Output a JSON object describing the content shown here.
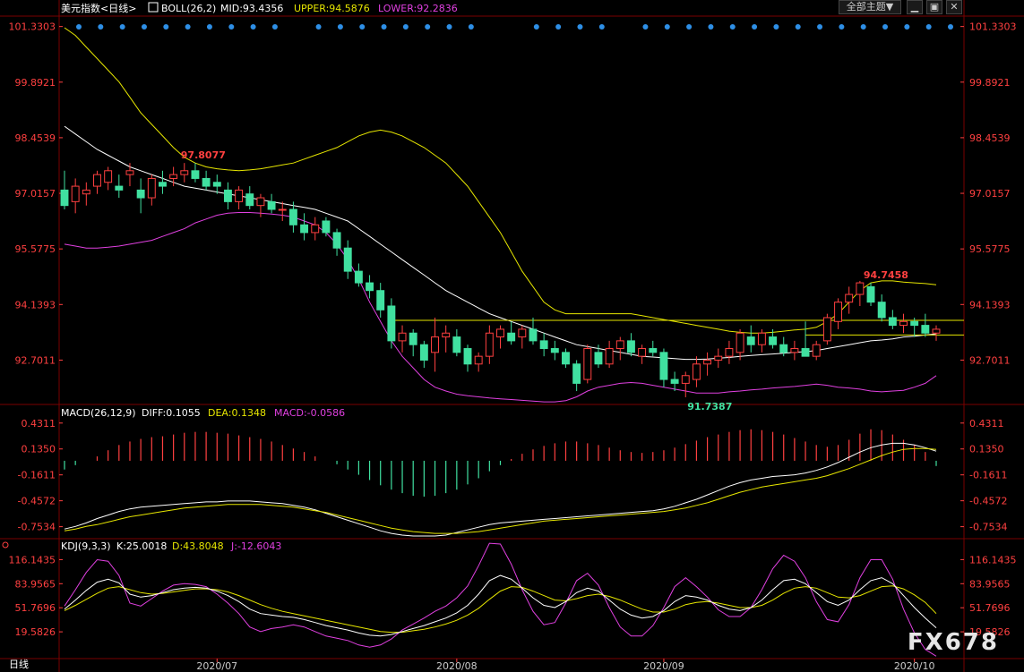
{
  "header": {
    "title": "美元指数<日线>",
    "boll": "BOLL(26,2)",
    "mid": "MID:93.4356",
    "upper": "UPPER:94.5876",
    "lower": "LOWER:92.2836",
    "theme_button": "全部主题▼"
  },
  "macd_header": {
    "label": "MACD(26,12,9)",
    "diff": "DIFF:0.1055",
    "dea": "DEA:0.1348",
    "macd": "MACD:-0.0586"
  },
  "kdj_header": {
    "label": "KDJ(9,3,3)",
    "k": "K:25.0018",
    "d": "D:43.8048",
    "j": "J:-12.6043"
  },
  "period_label": "日线",
  "watermark": "FX678",
  "colors": {
    "up": "#ff4040",
    "down": "#40e0a0",
    "mid": "#ffffff",
    "upper": "#e6e600",
    "lower": "#e040e0",
    "axis": "#ff4040",
    "grid": "#7a0000",
    "dots": "#2e8fe6"
  },
  "chart_data": [
    {
      "type": "candlestick",
      "name": "main",
      "y_ticks": [
        "101.3303",
        "99.8921",
        "98.4539",
        "97.0157",
        "95.5775",
        "94.1393",
        "92.7011"
      ],
      "ylim": [
        91.6,
        101.6
      ],
      "x_labels": [
        "2020/07",
        "2020/08",
        "2020/09",
        "2020/10"
      ],
      "annotations": {
        "high": "97.8077",
        "high_value": 97.8077,
        "high_index": 11,
        "low": "91.7387",
        "low_value": 91.7387,
        "low_index": 57,
        "recent_high": "94.7458",
        "recent_high_value": 94.7458,
        "recent_high_index": 73
      },
      "ohlc": [
        [
          97.1,
          97.6,
          96.6,
          96.7
        ],
        [
          96.8,
          97.4,
          96.5,
          97.2
        ],
        [
          97.0,
          97.3,
          96.7,
          97.1
        ],
        [
          97.2,
          97.6,
          97.0,
          97.5
        ],
        [
          97.3,
          97.7,
          97.1,
          97.6
        ],
        [
          97.2,
          97.5,
          96.9,
          97.1
        ],
        [
          97.5,
          97.8,
          97.2,
          97.6
        ],
        [
          97.1,
          97.4,
          96.5,
          96.9
        ],
        [
          96.9,
          97.5,
          96.7,
          97.4
        ],
        [
          97.3,
          97.6,
          97.0,
          97.2
        ],
        [
          97.4,
          97.7,
          97.2,
          97.5
        ],
        [
          97.5,
          97.8,
          97.3,
          97.6
        ],
        [
          97.6,
          97.8,
          97.3,
          97.4
        ],
        [
          97.4,
          97.6,
          97.1,
          97.2
        ],
        [
          97.3,
          97.5,
          97.0,
          97.2
        ],
        [
          97.1,
          97.3,
          96.6,
          96.8
        ],
        [
          96.8,
          97.2,
          96.6,
          97.1
        ],
        [
          97.0,
          97.2,
          96.6,
          96.7
        ],
        [
          96.7,
          97.0,
          96.4,
          96.9
        ],
        [
          96.8,
          97.0,
          96.5,
          96.6
        ],
        [
          96.6,
          96.8,
          96.3,
          96.6
        ],
        [
          96.6,
          96.8,
          96.0,
          96.2
        ],
        [
          96.2,
          96.5,
          95.8,
          96.0
        ],
        [
          96.0,
          96.4,
          95.8,
          96.2
        ],
        [
          96.3,
          96.4,
          95.9,
          96.0
        ],
        [
          96.0,
          96.1,
          95.4,
          95.6
        ],
        [
          95.6,
          95.8,
          94.8,
          95.0
        ],
        [
          95.0,
          95.2,
          94.6,
          94.7
        ],
        [
          94.7,
          94.9,
          94.3,
          94.5
        ],
        [
          94.5,
          94.7,
          93.8,
          94.0
        ],
        [
          94.1,
          94.3,
          93.0,
          93.2
        ],
        [
          93.2,
          93.6,
          92.9,
          93.4
        ],
        [
          93.4,
          93.5,
          92.8,
          93.1
        ],
        [
          93.1,
          93.2,
          92.5,
          92.7
        ],
        [
          92.9,
          93.8,
          92.4,
          93.3
        ],
        [
          93.3,
          93.6,
          92.9,
          93.4
        ],
        [
          93.3,
          93.5,
          92.8,
          92.9
        ],
        [
          93.0,
          93.1,
          92.4,
          92.6
        ],
        [
          92.6,
          92.9,
          92.4,
          92.8
        ],
        [
          92.8,
          93.6,
          92.6,
          93.4
        ],
        [
          93.3,
          93.6,
          93.0,
          93.5
        ],
        [
          93.4,
          93.7,
          93.1,
          93.2
        ],
        [
          93.3,
          93.6,
          93.0,
          93.5
        ],
        [
          93.5,
          93.8,
          93.1,
          93.2
        ],
        [
          93.2,
          93.4,
          92.8,
          93.0
        ],
        [
          93.0,
          93.2,
          92.7,
          92.9
        ],
        [
          92.9,
          93.0,
          92.5,
          92.6
        ],
        [
          92.6,
          92.7,
          91.9,
          92.1
        ],
        [
          92.2,
          93.1,
          92.1,
          93.0
        ],
        [
          92.9,
          93.1,
          92.5,
          92.6
        ],
        [
          92.6,
          93.2,
          92.5,
          93.0
        ],
        [
          93.0,
          93.3,
          92.7,
          93.2
        ],
        [
          93.2,
          93.4,
          92.8,
          92.9
        ],
        [
          92.8,
          93.1,
          92.6,
          93.0
        ],
        [
          93.0,
          93.2,
          92.8,
          92.9
        ],
        [
          92.9,
          93.0,
          92.0,
          92.2
        ],
        [
          92.2,
          92.4,
          91.9,
          92.1
        ],
        [
          92.1,
          92.4,
          91.74,
          92.3
        ],
        [
          92.2,
          92.8,
          92.0,
          92.6
        ],
        [
          92.6,
          92.9,
          92.3,
          92.7
        ],
        [
          92.7,
          93.0,
          92.5,
          92.8
        ],
        [
          92.8,
          93.2,
          92.6,
          93.0
        ],
        [
          92.9,
          93.5,
          92.7,
          93.4
        ],
        [
          93.3,
          93.6,
          92.9,
          93.1
        ],
        [
          93.1,
          93.5,
          92.9,
          93.4
        ],
        [
          93.3,
          93.5,
          93.0,
          93.1
        ],
        [
          93.1,
          93.3,
          92.8,
          92.9
        ],
        [
          92.9,
          93.2,
          92.7,
          93.0
        ],
        [
          93.0,
          93.7,
          92.8,
          92.8
        ],
        [
          92.8,
          93.2,
          92.7,
          93.1
        ],
        [
          93.2,
          93.9,
          93.1,
          93.8
        ],
        [
          93.7,
          94.3,
          93.5,
          94.2
        ],
        [
          94.2,
          94.6,
          93.9,
          94.4
        ],
        [
          94.4,
          94.75,
          94.1,
          94.7
        ],
        [
          94.6,
          94.7,
          94.1,
          94.2
        ],
        [
          94.2,
          94.4,
          93.7,
          93.8
        ],
        [
          93.8,
          94.0,
          93.5,
          93.6
        ],
        [
          93.6,
          93.9,
          93.4,
          93.7
        ],
        [
          93.7,
          93.8,
          93.3,
          93.6
        ],
        [
          93.6,
          93.9,
          93.3,
          93.4
        ],
        [
          93.4,
          93.6,
          93.2,
          93.5
        ]
      ],
      "mid_line": [
        98.75,
        98.55,
        98.35,
        98.15,
        98.0,
        97.85,
        97.7,
        97.6,
        97.5,
        97.4,
        97.3,
        97.2,
        97.15,
        97.1,
        97.05,
        97.0,
        96.95,
        96.9,
        96.85,
        96.8,
        96.75,
        96.7,
        96.65,
        96.6,
        96.5,
        96.4,
        96.3,
        96.1,
        95.9,
        95.7,
        95.5,
        95.3,
        95.1,
        94.9,
        94.7,
        94.5,
        94.35,
        94.2,
        94.05,
        93.9,
        93.8,
        93.7,
        93.6,
        93.5,
        93.4,
        93.3,
        93.2,
        93.1,
        93.05,
        93.0,
        92.95,
        92.9,
        92.85,
        92.8,
        92.78,
        92.76,
        92.74,
        92.72,
        92.72,
        92.73,
        92.75,
        92.77,
        92.8,
        92.82,
        92.84,
        92.86,
        92.88,
        92.9,
        92.92,
        92.95,
        93.0,
        93.05,
        93.1,
        93.15,
        93.2,
        93.22,
        93.25,
        93.3,
        93.32,
        93.35,
        93.38
      ],
      "upper_line": [
        101.3,
        101.1,
        100.8,
        100.5,
        100.2,
        99.9,
        99.5,
        99.1,
        98.8,
        98.5,
        98.2,
        97.95,
        97.8,
        97.7,
        97.65,
        97.62,
        97.6,
        97.62,
        97.65,
        97.7,
        97.75,
        97.8,
        97.9,
        98.0,
        98.1,
        98.2,
        98.35,
        98.5,
        98.6,
        98.65,
        98.6,
        98.5,
        98.35,
        98.2,
        98.0,
        97.8,
        97.5,
        97.2,
        96.8,
        96.4,
        96.0,
        95.5,
        95.0,
        94.6,
        94.2,
        94.0,
        93.9,
        93.9,
        93.9,
        93.9,
        93.9,
        93.9,
        93.9,
        93.85,
        93.8,
        93.75,
        93.7,
        93.65,
        93.6,
        93.55,
        93.5,
        93.45,
        93.42,
        93.4,
        93.4,
        93.42,
        93.45,
        93.48,
        93.5,
        93.55,
        93.7,
        93.9,
        94.2,
        94.5,
        94.7,
        94.75,
        94.75,
        94.72,
        94.7,
        94.68,
        94.65
      ],
      "lower_line": [
        95.7,
        95.65,
        95.6,
        95.6,
        95.62,
        95.65,
        95.7,
        95.75,
        95.8,
        95.9,
        96.0,
        96.1,
        96.25,
        96.35,
        96.45,
        96.5,
        96.52,
        96.52,
        96.5,
        96.48,
        96.45,
        96.4,
        96.3,
        96.2,
        96.0,
        95.7,
        95.3,
        94.8,
        94.2,
        93.7,
        93.2,
        92.8,
        92.5,
        92.2,
        92.0,
        91.9,
        91.82,
        91.78,
        91.75,
        91.72,
        91.7,
        91.68,
        91.66,
        91.64,
        91.62,
        91.62,
        91.65,
        91.75,
        91.9,
        92.0,
        92.05,
        92.1,
        92.12,
        92.1,
        92.05,
        92.0,
        91.95,
        91.9,
        91.85,
        91.85,
        91.85,
        91.88,
        91.9,
        91.93,
        91.95,
        91.98,
        92.0,
        92.02,
        92.05,
        92.08,
        92.05,
        92.0,
        91.98,
        91.95,
        91.9,
        91.88,
        91.9,
        91.92,
        92.0,
        92.1,
        92.3
      ],
      "support_levels": [
        {
          "value": 93.73,
          "from_index": 30
        },
        {
          "value": 93.35,
          "from_index": 68
        }
      ]
    },
    {
      "type": "bar",
      "name": "macd",
      "y_ticks": [
        "0.4311",
        "0.1350",
        "-0.1611",
        "-0.4572",
        "-0.7534"
      ],
      "ylim": [
        -0.87,
        0.48
      ],
      "hist": [
        -0.1,
        -0.05,
        0.0,
        0.05,
        0.12,
        0.18,
        0.22,
        0.25,
        0.27,
        0.28,
        0.3,
        0.32,
        0.33,
        0.33,
        0.32,
        0.31,
        0.29,
        0.27,
        0.25,
        0.22,
        0.18,
        0.14,
        0.1,
        0.05,
        0.0,
        -0.04,
        -0.1,
        -0.16,
        -0.22,
        -0.28,
        -0.33,
        -0.37,
        -0.4,
        -0.41,
        -0.4,
        -0.37,
        -0.33,
        -0.27,
        -0.2,
        -0.12,
        -0.05,
        0.02,
        0.08,
        0.13,
        0.17,
        0.2,
        0.22,
        0.22,
        0.2,
        0.18,
        0.15,
        0.12,
        0.1,
        0.09,
        0.1,
        0.12,
        0.15,
        0.19,
        0.23,
        0.27,
        0.3,
        0.33,
        0.35,
        0.36,
        0.35,
        0.33,
        0.3,
        0.26,
        0.22,
        0.18,
        0.16,
        0.18,
        0.24,
        0.31,
        0.36,
        0.35,
        0.3,
        0.24,
        0.18,
        0.1,
        -0.06
      ],
      "diff": [
        -0.78,
        -0.75,
        -0.71,
        -0.66,
        -0.62,
        -0.58,
        -0.55,
        -0.53,
        -0.52,
        -0.51,
        -0.5,
        -0.49,
        -0.48,
        -0.47,
        -0.47,
        -0.46,
        -0.46,
        -0.46,
        -0.47,
        -0.48,
        -0.49,
        -0.51,
        -0.53,
        -0.56,
        -0.6,
        -0.64,
        -0.68,
        -0.72,
        -0.76,
        -0.8,
        -0.83,
        -0.85,
        -0.86,
        -0.86,
        -0.86,
        -0.85,
        -0.82,
        -0.79,
        -0.76,
        -0.73,
        -0.71,
        -0.7,
        -0.69,
        -0.68,
        -0.67,
        -0.66,
        -0.65,
        -0.64,
        -0.63,
        -0.62,
        -0.61,
        -0.6,
        -0.59,
        -0.58,
        -0.57,
        -0.55,
        -0.52,
        -0.48,
        -0.44,
        -0.39,
        -0.34,
        -0.29,
        -0.25,
        -0.22,
        -0.2,
        -0.18,
        -0.17,
        -0.16,
        -0.14,
        -0.11,
        -0.07,
        -0.02,
        0.04,
        0.1,
        0.15,
        0.18,
        0.2,
        0.2,
        0.18,
        0.15,
        0.11
      ],
      "dea": [
        -0.8,
        -0.78,
        -0.75,
        -0.73,
        -0.7,
        -0.67,
        -0.64,
        -0.62,
        -0.6,
        -0.58,
        -0.56,
        -0.54,
        -0.53,
        -0.52,
        -0.51,
        -0.5,
        -0.5,
        -0.5,
        -0.5,
        -0.51,
        -0.52,
        -0.53,
        -0.55,
        -0.57,
        -0.59,
        -0.62,
        -0.65,
        -0.68,
        -0.71,
        -0.74,
        -0.77,
        -0.79,
        -0.81,
        -0.82,
        -0.83,
        -0.83,
        -0.83,
        -0.82,
        -0.81,
        -0.79,
        -0.77,
        -0.75,
        -0.73,
        -0.71,
        -0.69,
        -0.68,
        -0.67,
        -0.66,
        -0.65,
        -0.64,
        -0.63,
        -0.62,
        -0.61,
        -0.6,
        -0.59,
        -0.58,
        -0.56,
        -0.54,
        -0.51,
        -0.48,
        -0.44,
        -0.4,
        -0.36,
        -0.33,
        -0.3,
        -0.28,
        -0.26,
        -0.24,
        -0.22,
        -0.2,
        -0.17,
        -0.13,
        -0.09,
        -0.04,
        0.01,
        0.06,
        0.1,
        0.13,
        0.14,
        0.14,
        0.13
      ]
    },
    {
      "type": "line",
      "name": "kdj",
      "y_ticks": [
        "116.1435",
        "83.9565",
        "51.7696",
        "19.5826"
      ],
      "ylim": [
        -15,
        125
      ],
      "k": [
        50,
        62,
        75,
        86,
        90,
        85,
        70,
        66,
        68,
        72,
        76,
        78,
        79,
        78,
        74,
        68,
        60,
        50,
        44,
        42,
        40,
        39,
        36,
        32,
        28,
        25,
        22,
        18,
        15,
        14,
        16,
        20,
        24,
        28,
        33,
        38,
        45,
        55,
        70,
        88,
        95,
        90,
        78,
        65,
        55,
        52,
        60,
        72,
        78,
        74,
        62,
        50,
        42,
        38,
        40,
        48,
        60,
        68,
        66,
        62,
        55,
        50,
        48,
        52,
        62,
        76,
        88,
        90,
        84,
        72,
        60,
        55,
        62,
        76,
        88,
        92,
        84,
        68,
        52,
        38,
        25
      ],
      "d": [
        48,
        55,
        63,
        71,
        78,
        80,
        76,
        72,
        70,
        71,
        73,
        75,
        77,
        77,
        76,
        73,
        68,
        62,
        56,
        51,
        47,
        44,
        41,
        38,
        35,
        32,
        29,
        26,
        23,
        20,
        19,
        19,
        21,
        23,
        26,
        30,
        35,
        42,
        51,
        63,
        74,
        80,
        79,
        74,
        68,
        62,
        61,
        64,
        68,
        70,
        67,
        62,
        56,
        50,
        46,
        46,
        50,
        56,
        59,
        60,
        58,
        55,
        52,
        52,
        55,
        62,
        71,
        78,
        80,
        78,
        72,
        66,
        65,
        68,
        74,
        80,
        81,
        77,
        69,
        59,
        44
      ],
      "j": [
        54,
        76,
        99,
        116,
        114,
        95,
        58,
        54,
        64,
        74,
        82,
        84,
        83,
        80,
        70,
        58,
        44,
        26,
        20,
        24,
        26,
        29,
        26,
        20,
        14,
        11,
        8,
        2,
        -1,
        2,
        10,
        22,
        30,
        38,
        47,
        54,
        65,
        81,
        108,
        138,
        137,
        110,
        76,
        47,
        29,
        32,
        58,
        88,
        98,
        82,
        52,
        26,
        14,
        14,
        28,
        52,
        80,
        92,
        80,
        66,
        49,
        40,
        40,
        52,
        76,
        104,
        122,
        114,
        92,
        60,
        36,
        33,
        56,
        92,
        116,
        116,
        90,
        50,
        18,
        -4,
        -13
      ]
    }
  ]
}
